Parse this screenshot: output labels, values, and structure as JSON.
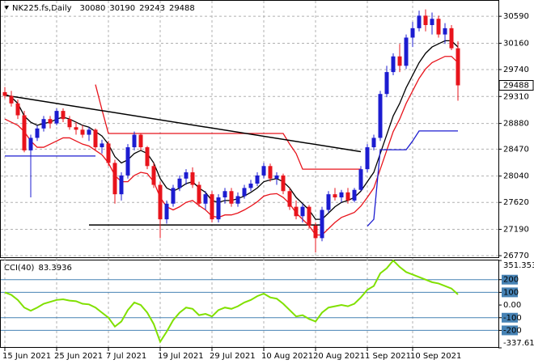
{
  "chart_data": [
    {
      "type": "candlestick",
      "title": "NK225.fs,Daily",
      "categories": [
        "15 Jun 2021",
        null,
        null,
        null,
        null,
        null,
        null,
        null,
        "25 Jun 2021",
        null,
        null,
        null,
        null,
        null,
        null,
        null,
        "7 Jul 2021",
        null,
        null,
        null,
        null,
        null,
        null,
        null,
        "19 Jul 2021",
        null,
        null,
        null,
        null,
        null,
        null,
        null,
        "29 Jul 2021",
        null,
        null,
        null,
        null,
        null,
        null,
        null,
        "10 Aug 2021",
        null,
        null,
        null,
        null,
        null,
        null,
        null,
        "20 Aug 2021",
        null,
        null,
        null,
        null,
        null,
        null,
        null,
        "1 Sep 2021",
        null,
        null,
        null,
        null,
        null,
        null,
        "10 Sep 2021",
        null,
        null,
        null,
        null,
        null,
        null,
        null
      ],
      "open": [
        29380,
        29320,
        29200,
        29010,
        28450,
        28650,
        28800,
        28950,
        28880,
        29080,
        28950,
        28820,
        28780,
        28700,
        28780,
        28500,
        28560,
        28250,
        27750,
        28050,
        28500,
        28700,
        28500,
        28200,
        27900,
        27350,
        27600,
        27850,
        28000,
        28100,
        27900,
        27600,
        27750,
        27350,
        27700,
        27800,
        27600,
        27720,
        27850,
        27920,
        28050,
        28200,
        28000,
        28050,
        27800,
        27550,
        27400,
        27550,
        27250,
        27050,
        27500,
        27750,
        27700,
        27780,
        27650,
        27820,
        28150,
        28500,
        28650,
        29350,
        29700,
        29950,
        29800,
        30250,
        30400,
        30600,
        30450,
        30550,
        30300,
        30400,
        30080
      ],
      "high": [
        29460,
        29400,
        29260,
        29080,
        28700,
        28850,
        29000,
        29000,
        29120,
        29120,
        29000,
        28900,
        28850,
        28820,
        28800,
        28620,
        28600,
        28300,
        28100,
        28550,
        28750,
        28720,
        28520,
        28250,
        27950,
        27650,
        27900,
        28050,
        28150,
        28180,
        27950,
        27800,
        27800,
        27750,
        27850,
        27850,
        27780,
        27900,
        27980,
        28100,
        28250,
        28240,
        28100,
        28080,
        27850,
        27650,
        27600,
        27580,
        27300,
        27550,
        27800,
        27850,
        27820,
        27850,
        27850,
        28200,
        28550,
        28700,
        29400,
        29800,
        30000,
        30150,
        30300,
        30500,
        30680,
        30700,
        30650,
        30600,
        30480,
        30450,
        30190
      ],
      "low": [
        29280,
        29150,
        28950,
        28420,
        27700,
        28600,
        28750,
        28800,
        28850,
        28900,
        28780,
        28700,
        28650,
        28600,
        28450,
        28400,
        28200,
        27600,
        27650,
        28000,
        28450,
        28450,
        28150,
        27850,
        27050,
        27280,
        27550,
        27800,
        27900,
        27850,
        27550,
        27500,
        27300,
        27300,
        27600,
        27550,
        27550,
        27680,
        27800,
        27880,
        28000,
        27950,
        27900,
        27750,
        27500,
        27350,
        27300,
        27200,
        26820,
        27000,
        27450,
        27650,
        27620,
        27600,
        27620,
        27800,
        28100,
        28450,
        28600,
        29300,
        29650,
        29700,
        29750,
        30100,
        30350,
        30350,
        30300,
        30250,
        30150,
        30050,
        29243
      ],
      "close": [
        29320,
        29200,
        29010,
        28450,
        28650,
        28800,
        28950,
        28880,
        29080,
        28950,
        28820,
        28780,
        28700,
        28780,
        28500,
        28560,
        28250,
        27750,
        28050,
        28500,
        28700,
        28500,
        28200,
        27900,
        27350,
        27600,
        27850,
        28000,
        28100,
        27900,
        27600,
        27750,
        27350,
        27700,
        27800,
        27600,
        27720,
        27850,
        27920,
        28050,
        28200,
        28000,
        28050,
        27800,
        27550,
        27400,
        27550,
        27250,
        27050,
        27500,
        27750,
        27700,
        27780,
        27650,
        27820,
        28150,
        28500,
        28650,
        29350,
        29700,
        29950,
        29800,
        30250,
        30400,
        30600,
        30450,
        30550,
        30300,
        30400,
        30080,
        29488
      ],
      "up_color": "#1c1cd0",
      "down_color": "#e8141c",
      "overlays": [
        {
          "color": "#000000",
          "values": [
            29350,
            29300,
            29200,
            29000,
            28900,
            28850,
            28880,
            28900,
            28950,
            28980,
            28950,
            28900,
            28850,
            28820,
            28750,
            28680,
            28550,
            28350,
            28250,
            28300,
            28400,
            28450,
            28400,
            28250,
            28000,
            27850,
            27800,
            27850,
            27920,
            27950,
            27850,
            27780,
            27650,
            27620,
            27650,
            27650,
            27680,
            27720,
            27780,
            27850,
            27950,
            27980,
            28000,
            27950,
            27850,
            27700,
            27600,
            27500,
            27350,
            27350,
            27450,
            27550,
            27620,
            27650,
            27700,
            27800,
            27950,
            28100,
            28400,
            28700,
            29000,
            29200,
            29450,
            29650,
            29850,
            30000,
            30100,
            30150,
            30200,
            30200,
            30100
          ]
        },
        {
          "color": "#e8141c",
          "values": [
            28950,
            28900,
            28850,
            28750,
            28600,
            28500,
            28500,
            28550,
            28600,
            28650,
            28650,
            28600,
            28550,
            28520,
            28450,
            28380,
            28250,
            28050,
            27950,
            27950,
            28050,
            28100,
            28080,
            27950,
            27700,
            27550,
            27500,
            27550,
            27620,
            27650,
            27570,
            27500,
            27400,
            27380,
            27420,
            27420,
            27450,
            27500,
            27560,
            27630,
            27720,
            27750,
            27760,
            27700,
            27600,
            27450,
            27350,
            27250,
            27100,
            27100,
            27200,
            27300,
            27380,
            27420,
            27460,
            27560,
            27700,
            27850,
            28150,
            28450,
            28750,
            28950,
            29200,
            29400,
            29600,
            29750,
            29850,
            29900,
            29950,
            29950,
            29850
          ]
        },
        {
          "color": "#e8141c",
          "values": [
            null,
            null,
            null,
            null,
            null,
            null,
            null,
            null,
            null,
            null,
            null,
            null,
            null,
            null,
            29500,
            29100,
            28720,
            28720,
            28720,
            28720,
            28720,
            28720,
            28720,
            28720,
            28720,
            28720,
            28720,
            28720,
            28720,
            28720,
            28720,
            28720,
            28720,
            28720,
            28720,
            28720,
            28720,
            28720,
            28720,
            28720,
            28720,
            28720,
            28720,
            28720,
            28550,
            28400,
            28150,
            28150,
            28150,
            28150,
            28150,
            28150,
            28150,
            28150,
            28150,
            28150,
            null,
            null,
            null,
            null,
            null,
            null,
            null,
            null,
            null,
            null,
            null,
            null,
            null,
            null,
            null
          ]
        },
        {
          "color": "#1c1cd0",
          "values": [
            28360,
            28360,
            28360,
            28360,
            28360,
            28360,
            28360,
            28360,
            28360,
            28360,
            28360,
            28360,
            28360,
            28360,
            28360,
            null,
            null,
            null,
            null,
            null,
            null,
            null,
            null,
            null,
            null,
            null,
            null,
            null,
            null,
            null,
            null,
            null,
            null,
            null,
            null,
            null,
            null,
            null,
            null,
            null,
            null,
            null,
            null,
            null,
            null,
            null,
            null,
            null,
            null,
            null,
            null,
            null,
            null,
            null,
            null,
            null,
            27240,
            27350,
            28460,
            28460,
            28460,
            28460,
            28460,
            28600,
            28760,
            28760,
            28760,
            28760,
            28760,
            28760,
            28760
          ]
        }
      ],
      "segments": [
        {
          "color": "#000000",
          "x": [
            0,
            55
          ],
          "values": [
            29330,
            28430
          ]
        },
        {
          "color": "#000000",
          "x": [
            13,
            49
          ],
          "values": [
            27260,
            27260
          ]
        }
      ],
      "ylim": [
        26745,
        30850
      ],
      "yticks": [
        26770,
        27190,
        27620,
        28040,
        28470,
        28880,
        29310,
        29740,
        30160,
        30590
      ],
      "grid": true
    },
    {
      "type": "line",
      "title": "CCI(40)",
      "color": "#80e000",
      "values": [
        100,
        80,
        40,
        -20,
        -45,
        -20,
        10,
        25,
        40,
        45,
        35,
        30,
        10,
        5,
        -20,
        -60,
        -100,
        -170,
        -130,
        -40,
        20,
        0,
        -60,
        -150,
        -290,
        -210,
        -120,
        -60,
        -20,
        -30,
        -80,
        -70,
        -90,
        -40,
        -20,
        -30,
        -10,
        20,
        40,
        70,
        90,
        60,
        50,
        10,
        -40,
        -90,
        -80,
        -110,
        -130,
        -60,
        -20,
        -10,
        0,
        -10,
        10,
        60,
        120,
        150,
        250,
        290,
        351.3536,
        300,
        260,
        240,
        220,
        200,
        180,
        170,
        150,
        130,
        83.3936
      ],
      "ylim": [
        -337.6183,
        351.3536
      ],
      "yticks": [
        351.3536,
        200,
        100,
        {
          "value": 0,
          "label": "0.00"
        },
        -100,
        -200,
        -337.6183
      ]
    }
  ]
}
